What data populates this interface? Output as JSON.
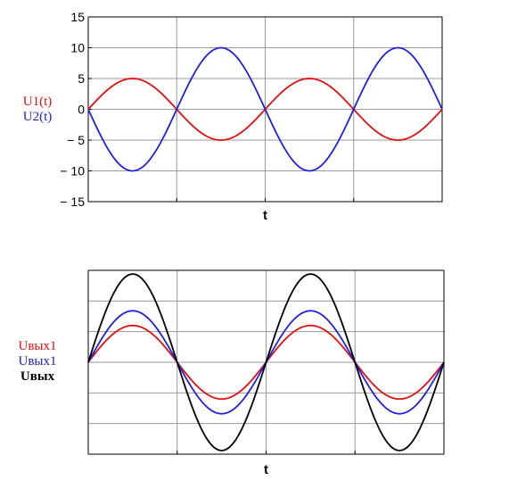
{
  "chart_data": [
    {
      "type": "line",
      "xlabel": "t",
      "ylabel_entries": [
        {
          "text": "U1(t)",
          "color": "#e01010"
        },
        {
          "text": "U2(t)",
          "color": "#2020e0"
        }
      ],
      "ylim": [
        -15,
        15
      ],
      "yticks": [
        15,
        10,
        5,
        0,
        -5,
        -10,
        -15
      ],
      "ytick_labels": [
        "15",
        "10",
        "5",
        "0",
        "− 5",
        "− 10",
        "− 15"
      ],
      "xlim": [
        0,
        4
      ],
      "grid": true,
      "series": [
        {
          "name": "U1(t)",
          "color": "#e01010",
          "amplitude": 5,
          "period": 2,
          "phase_sign": 1
        },
        {
          "name": "U2(t)",
          "color": "#2020e0",
          "amplitude": 10,
          "period": 2,
          "phase_sign": -1
        }
      ]
    },
    {
      "type": "line",
      "xlabel": "t",
      "ylabel_entries": [
        {
          "text": "Uвых1",
          "color": "#e01010",
          "bold": false
        },
        {
          "text": "Uвых1",
          "color": "#2020c0",
          "bold": false
        },
        {
          "text": "Uвых",
          "color": "#000000",
          "bold": true
        }
      ],
      "ylim": [
        -2.5,
        2.5
      ],
      "xlim": [
        0,
        4
      ],
      "grid": true,
      "series": [
        {
          "name": "Uвых1",
          "color": "#e01010",
          "amplitude": 1,
          "period": 2,
          "phase_sign": 1
        },
        {
          "name": "Uвых1",
          "color": "#2020e0",
          "amplitude": 1.4,
          "period": 2,
          "phase_sign": 1
        },
        {
          "name": "Uвых",
          "color": "#000000",
          "amplitude": 2.4,
          "period": 2,
          "phase_sign": 1
        }
      ]
    }
  ]
}
